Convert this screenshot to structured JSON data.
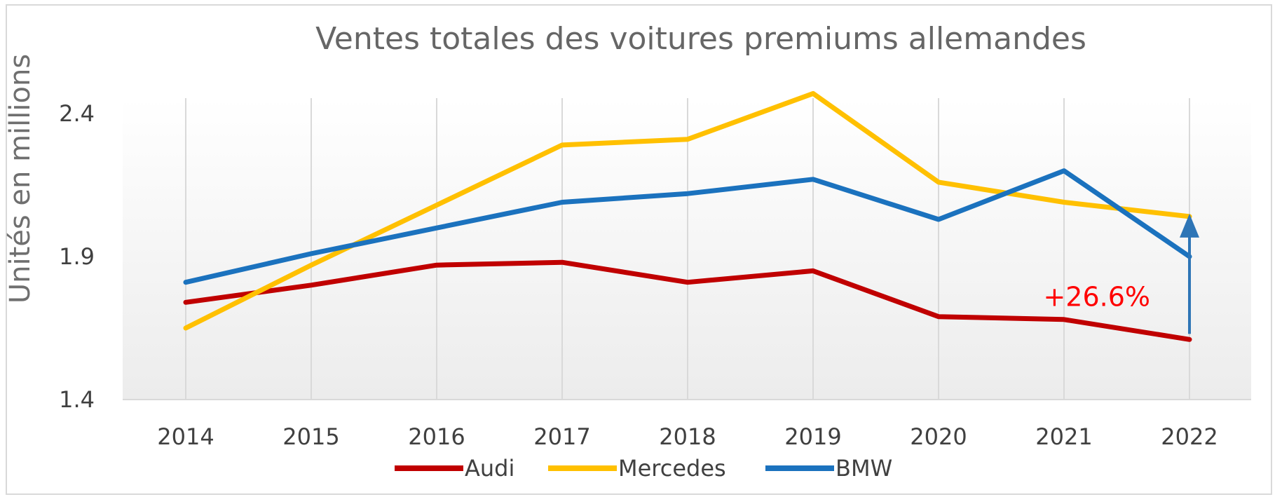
{
  "chart_data": {
    "type": "line",
    "title": "Ventes totales des voitures premiums allemandes",
    "ylabel": "Unités en millions",
    "xlabel": "",
    "categories": [
      "2014",
      "2015",
      "2016",
      "2017",
      "2018",
      "2019",
      "2020",
      "2021",
      "2022"
    ],
    "yticks": [
      "1.4",
      "1.9",
      "2.4"
    ],
    "ylim": [
      1.4,
      2.48
    ],
    "grid": "vertical",
    "legend_position": "bottom",
    "series": [
      {
        "name": "Audi",
        "color": "#c00000",
        "values": [
          1.74,
          1.8,
          1.87,
          1.88,
          1.81,
          1.85,
          1.69,
          1.68,
          1.61
        ]
      },
      {
        "name": "Mercedes",
        "color": "#ffc000",
        "values": [
          1.65,
          1.87,
          2.08,
          2.29,
          2.31,
          2.47,
          2.16,
          2.09,
          2.04
        ]
      },
      {
        "name": "BMW",
        "color": "#1b72be",
        "values": [
          1.81,
          1.91,
          2.0,
          2.09,
          2.12,
          2.17,
          2.03,
          2.2,
          1.9
        ]
      }
    ],
    "annotation": {
      "text": "+26.6%",
      "color": "#ff0000",
      "arrow_color": "#2e75b6",
      "category": "2022",
      "from_value": 1.61,
      "to_value": 2.04
    }
  }
}
